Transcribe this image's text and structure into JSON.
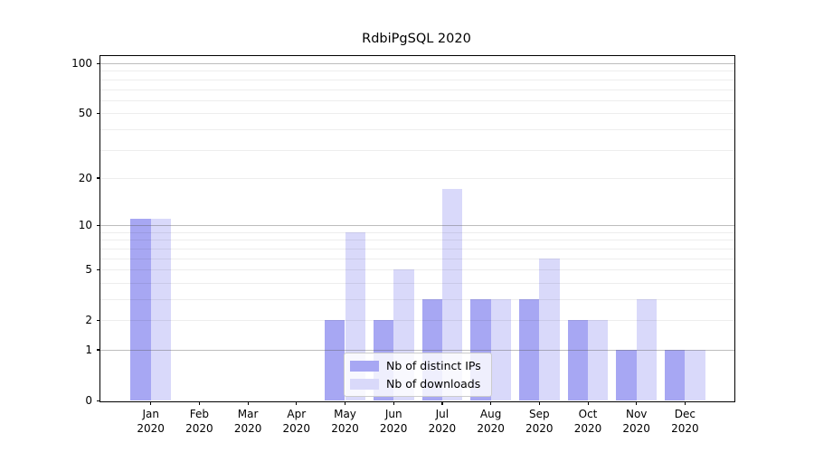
{
  "title": "RdbiPgSQL 2020",
  "chart_data": {
    "type": "bar",
    "title": "RdbiPgSQL 2020",
    "categories": [
      "Jan",
      "Feb",
      "Mar",
      "Apr",
      "May",
      "Jun",
      "Jul",
      "Aug",
      "Sep",
      "Oct",
      "Nov",
      "Dec"
    ],
    "x_tick_year": "2020",
    "series": [
      {
        "name": "Nb of distinct IPs",
        "color": "#a7a7f3",
        "values": [
          11,
          0,
          0,
          0,
          2,
          2,
          3,
          3,
          3,
          2,
          1,
          1
        ]
      },
      {
        "name": "Nb of downloads",
        "color": "#d9d9fa",
        "values": [
          11,
          0,
          0,
          0,
          9,
          5,
          17,
          3,
          6,
          2,
          3,
          1
        ]
      }
    ],
    "xlabel": "",
    "ylabel": "",
    "y_scale": "log1p",
    "y_ticks": [
      0,
      1,
      2,
      5,
      10,
      20,
      50,
      100
    ],
    "y_grid_major": [
      1,
      10,
      100
    ],
    "y_grid_minor": [
      2,
      3,
      4,
      5,
      6,
      7,
      8,
      9,
      20,
      30,
      40,
      50,
      60,
      70,
      80,
      90
    ],
    "ylim": [
      0,
      112
    ],
    "grid": true,
    "legend_position": "lower center"
  },
  "legend": {
    "items": [
      {
        "label": "Nb of distinct IPs"
      },
      {
        "label": "Nb of downloads"
      }
    ]
  },
  "colors": {
    "bar_distinct_ips": "#a7a7f3",
    "bar_downloads": "#d9d9fa",
    "axis": "#000000",
    "grid_major": "#c3c3c3",
    "grid_minor": "#ededed",
    "legend_border": "#cccccc",
    "background": "#ffffff"
  }
}
